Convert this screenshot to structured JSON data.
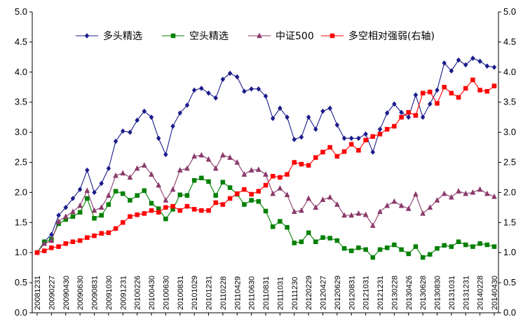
{
  "chart_data": {
    "type": "line",
    "legend_position": "top",
    "grid": false,
    "left_axis": {
      "ylim": [
        0.0,
        5.0
      ],
      "ticks": [
        "0.0",
        "0.5",
        "1.0",
        "1.5",
        "2.0",
        "2.5",
        "3.0",
        "3.5",
        "4.0",
        "4.5",
        "5.0"
      ]
    },
    "right_axis": {
      "ylim": [
        0.0,
        5.0
      ],
      "ticks": [
        "0.0",
        "0.5",
        "1.0",
        "1.5",
        "2.0",
        "2.5",
        "3.0",
        "3.5",
        "4.0",
        "4.5",
        "5.0"
      ]
    },
    "x_tick_labels": [
      "20081231",
      "20090227",
      "20090430",
      "20090630",
      "20090831",
      "20091030",
      "20091231",
      "20100226",
      "20100430",
      "20100630",
      "20100831",
      "20101029",
      "20101231",
      "20110228",
      "20110429",
      "20110630",
      "20110831",
      "20111031",
      "20111230",
      "20120229",
      "20120427",
      "20120629",
      "20120831",
      "20121031",
      "20121231",
      "20130228",
      "20130426",
      "20130628",
      "20130830",
      "20131031",
      "20131231",
      "20140228",
      "20140430"
    ],
    "series": [
      {
        "name": "多头精选",
        "color": "#1b1b8c",
        "marker": "diamond",
        "axis": "left",
        "values": [
          1.0,
          1.18,
          1.3,
          1.62,
          1.75,
          1.9,
          2.05,
          2.37,
          2.0,
          2.15,
          2.4,
          2.85,
          3.02,
          3.0,
          3.2,
          3.35,
          3.25,
          2.9,
          2.63,
          3.1,
          3.32,
          3.45,
          3.7,
          3.73,
          3.65,
          3.57,
          3.88,
          3.98,
          3.92,
          3.68,
          3.72,
          3.72,
          3.6,
          3.23,
          3.4,
          3.25,
          2.88,
          2.92,
          3.25,
          3.05,
          3.35,
          3.4,
          3.12,
          2.9,
          2.9,
          2.9,
          2.97,
          2.67,
          3.05,
          3.32,
          3.47,
          3.33,
          3.25,
          3.62,
          3.25,
          3.47,
          3.7,
          4.15,
          4.02,
          4.2,
          4.12,
          4.23,
          4.18,
          4.1,
          4.08
        ]
      },
      {
        "name": "空头精选",
        "color": "#008000",
        "marker": "square",
        "axis": "left",
        "values": [
          1.0,
          1.18,
          1.22,
          1.48,
          1.55,
          1.6,
          1.67,
          1.9,
          1.57,
          1.62,
          1.8,
          2.02,
          1.98,
          1.87,
          1.95,
          2.03,
          1.82,
          1.73,
          1.56,
          1.72,
          1.96,
          1.95,
          2.2,
          2.24,
          2.18,
          1.95,
          2.17,
          2.08,
          1.97,
          1.8,
          1.87,
          1.85,
          1.69,
          1.43,
          1.52,
          1.42,
          1.16,
          1.18,
          1.33,
          1.18,
          1.25,
          1.24,
          1.2,
          1.07,
          1.03,
          1.08,
          1.05,
          0.92,
          1.05,
          1.08,
          1.13,
          1.05,
          0.98,
          1.1,
          0.92,
          0.97,
          1.07,
          1.12,
          1.1,
          1.18,
          1.13,
          1.1,
          1.15,
          1.13,
          1.1
        ]
      },
      {
        "name": "中证500",
        "color": "#8b3a6b",
        "marker": "triangle",
        "axis": "left",
        "values": [
          1.0,
          1.15,
          1.2,
          1.52,
          1.6,
          1.68,
          1.78,
          2.03,
          1.7,
          1.75,
          1.95,
          2.28,
          2.32,
          2.25,
          2.4,
          2.45,
          2.3,
          2.12,
          1.87,
          2.05,
          2.37,
          2.4,
          2.6,
          2.62,
          2.55,
          2.4,
          2.62,
          2.58,
          2.5,
          2.3,
          2.37,
          2.38,
          2.3,
          1.98,
          2.07,
          1.96,
          1.68,
          1.7,
          1.9,
          1.75,
          1.88,
          1.92,
          1.8,
          1.62,
          1.62,
          1.65,
          1.63,
          1.45,
          1.68,
          1.78,
          1.85,
          1.78,
          1.73,
          1.97,
          1.65,
          1.75,
          1.87,
          1.98,
          1.92,
          2.02,
          1.98,
          2.0,
          2.05,
          1.98,
          1.93
        ]
      },
      {
        "name": "多空相对强弱(右轴)",
        "color": "#ff0000",
        "marker": "square",
        "axis": "right",
        "values": [
          1.0,
          1.03,
          1.08,
          1.1,
          1.15,
          1.18,
          1.2,
          1.25,
          1.28,
          1.32,
          1.33,
          1.4,
          1.5,
          1.6,
          1.63,
          1.65,
          1.7,
          1.67,
          1.75,
          1.77,
          1.7,
          1.77,
          1.72,
          1.7,
          1.7,
          1.83,
          1.8,
          1.9,
          1.98,
          2.05,
          1.97,
          2.02,
          2.12,
          2.27,
          2.25,
          2.3,
          2.5,
          2.47,
          2.45,
          2.58,
          2.67,
          2.75,
          2.6,
          2.68,
          2.8,
          2.7,
          2.87,
          2.93,
          2.97,
          3.05,
          3.1,
          3.25,
          3.33,
          3.28,
          3.65,
          3.67,
          3.48,
          3.75,
          3.65,
          3.58,
          3.73,
          3.87,
          3.7,
          3.68,
          3.77
        ]
      }
    ]
  }
}
